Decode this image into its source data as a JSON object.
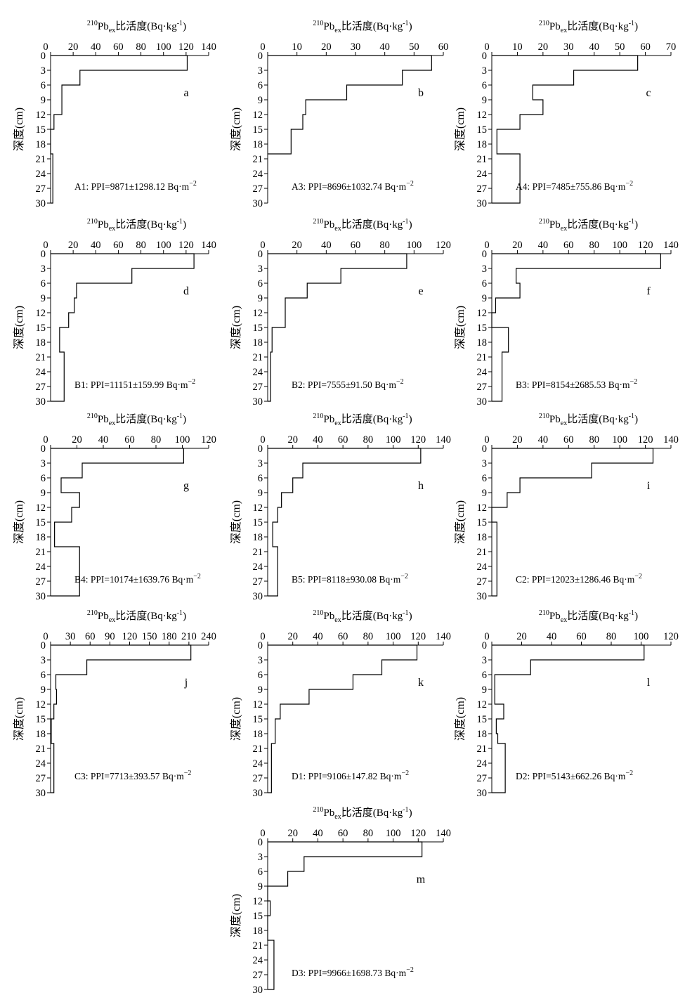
{
  "figure": {
    "axis_title": {
      "sup": "210",
      "base": "Pb",
      "sub": "ex",
      "text": "比活度(Bq·kg",
      "exp": "-1",
      "close": ")"
    },
    "ylabel": "深度(cm)",
    "depth_ticks": [
      0,
      3,
      6,
      9,
      12,
      15,
      18,
      21,
      24,
      27,
      30
    ],
    "ppi_unit": "Bq·m",
    "ppi_exp": "−2"
  },
  "chart_data": [
    {
      "type": "line",
      "step": true,
      "panel": "a",
      "site": "A1",
      "ppi": "PPI=9871±1298.12",
      "xlim": [
        0,
        140
      ],
      "xticks": [
        20,
        40,
        60,
        80,
        100,
        120,
        140
      ],
      "xtick_labels": [
        "20",
        "40",
        "60",
        "80",
        "100",
        "120",
        "140"
      ],
      "ylim": [
        0,
        30
      ],
      "profile": [
        [
          121,
          0,
          3
        ],
        [
          26,
          3,
          6
        ],
        [
          10,
          6,
          12
        ],
        [
          3,
          12,
          15
        ],
        [
          0,
          15,
          20
        ],
        [
          2,
          20,
          30
        ]
      ]
    },
    {
      "type": "line",
      "step": true,
      "panel": "b",
      "site": "A3",
      "ppi": "PPI=8696±1032.74",
      "xlim": [
        0,
        60
      ],
      "xticks": [
        10,
        20,
        30,
        40,
        50,
        60
      ],
      "xtick_labels": [
        "10",
        "20",
        "30",
        "40",
        "50",
        "60"
      ],
      "ylim": [
        0,
        30
      ],
      "profile": [
        [
          56,
          0,
          3
        ],
        [
          46,
          3,
          6
        ],
        [
          27,
          6,
          9
        ],
        [
          13,
          9,
          12
        ],
        [
          12,
          12,
          15
        ],
        [
          8,
          15,
          20
        ]
      ]
    },
    {
      "type": "line",
      "step": true,
      "panel": "c",
      "site": "A4",
      "ppi": "PPI=7485±755.86",
      "xlim": [
        0,
        70
      ],
      "xticks": [
        10,
        20,
        30,
        40,
        50,
        60,
        70
      ],
      "xtick_labels": [
        "10",
        "20",
        "30",
        "40",
        "50",
        "60",
        "70"
      ],
      "ylim": [
        0,
        30
      ],
      "profile": [
        [
          57,
          0,
          3
        ],
        [
          32,
          3,
          6
        ],
        [
          16,
          6,
          9
        ],
        [
          20,
          9,
          12
        ],
        [
          11,
          12,
          15
        ],
        [
          2,
          15,
          20
        ],
        [
          11,
          20,
          30
        ]
      ]
    },
    {
      "type": "line",
      "step": true,
      "panel": "d",
      "site": "B1",
      "ppi": "PPI=11151±159.99",
      "xlim": [
        0,
        140
      ],
      "xticks": [
        20,
        40,
        60,
        80,
        100,
        120,
        140
      ],
      "xtick_labels": [
        "20",
        "40",
        "60",
        "80",
        "100",
        "120",
        "140"
      ],
      "ylim": [
        0,
        30
      ],
      "profile": [
        [
          127,
          0,
          3
        ],
        [
          72,
          3,
          6
        ],
        [
          23,
          6,
          9
        ],
        [
          21,
          9,
          12
        ],
        [
          16,
          12,
          15
        ],
        [
          8,
          15,
          20
        ],
        [
          12,
          20,
          30
        ]
      ]
    },
    {
      "type": "line",
      "step": true,
      "panel": "e",
      "site": "B2",
      "ppi": "PPI=7555±91.50",
      "xlim": [
        0,
        120
      ],
      "xticks": [
        20,
        40,
        60,
        80,
        100,
        120
      ],
      "xtick_labels": [
        "20",
        "40",
        "60",
        "80",
        "100",
        "120"
      ],
      "ylim": [
        0,
        30
      ],
      "profile": [
        [
          95,
          0,
          3
        ],
        [
          50,
          3,
          6
        ],
        [
          27,
          6,
          9
        ],
        [
          12,
          9,
          15
        ],
        [
          3,
          15,
          20
        ],
        [
          2,
          20,
          30
        ]
      ]
    },
    {
      "type": "line",
      "step": true,
      "panel": "f",
      "site": "B3",
      "ppi": "PPI=8154±2685.53",
      "xlim": [
        0,
        140
      ],
      "xticks": [
        20,
        40,
        60,
        80,
        100,
        120,
        140
      ],
      "xtick_labels": [
        "20",
        "40",
        "60",
        "80",
        "100",
        "120",
        "140"
      ],
      "ylim": [
        0,
        30
      ],
      "profile": [
        [
          132,
          0,
          3
        ],
        [
          19,
          3,
          6
        ],
        [
          22,
          6,
          9
        ],
        [
          3,
          9,
          12
        ],
        [
          0,
          12,
          15
        ],
        [
          13,
          15,
          20
        ],
        [
          8,
          20,
          30
        ]
      ]
    },
    {
      "type": "line",
      "step": true,
      "panel": "g",
      "site": "B4",
      "ppi": "PPI=10174±1639.76",
      "xlim": [
        0,
        120
      ],
      "xticks": [
        20,
        40,
        60,
        80,
        100,
        120
      ],
      "xtick_labels": [
        "20",
        "40",
        "60",
        "80",
        "100",
        "120"
      ],
      "ylim": [
        0,
        30
      ],
      "profile": [
        [
          101,
          0,
          3
        ],
        [
          24,
          3,
          6
        ],
        [
          8,
          6,
          9
        ],
        [
          22,
          9,
          12
        ],
        [
          16,
          12,
          15
        ],
        [
          3,
          15,
          20
        ],
        [
          22,
          20,
          30
        ]
      ]
    },
    {
      "type": "line",
      "step": true,
      "panel": "h",
      "site": "B5",
      "ppi": "PPI=8118±930.08",
      "xlim": [
        0,
        140
      ],
      "xticks": [
        20,
        40,
        60,
        80,
        100,
        120,
        140
      ],
      "xtick_labels": [
        "20",
        "40",
        "60",
        "80",
        "100",
        "120",
        "140"
      ],
      "ylim": [
        0,
        30
      ],
      "profile": [
        [
          122,
          0,
          3
        ],
        [
          28,
          3,
          6
        ],
        [
          20,
          6,
          9
        ],
        [
          11,
          9,
          12
        ],
        [
          8,
          12,
          15
        ],
        [
          4,
          15,
          20
        ],
        [
          8,
          20,
          30
        ]
      ]
    },
    {
      "type": "line",
      "step": true,
      "panel": "i",
      "site": "C2",
      "ppi": "PPI=12023±1286.46",
      "xlim": [
        0,
        140
      ],
      "xticks": [
        20,
        40,
        60,
        80,
        100,
        120,
        140
      ],
      "xtick_labels": [
        "20",
        "40",
        "60",
        "80",
        "100",
        "120",
        "140"
      ],
      "ylim": [
        0,
        30
      ],
      "profile": [
        [
          126,
          0,
          3
        ],
        [
          78,
          3,
          6
        ],
        [
          22,
          6,
          9
        ],
        [
          12,
          9,
          12
        ],
        [
          0,
          12,
          15
        ],
        [
          4,
          15,
          30
        ]
      ]
    },
    {
      "type": "line",
      "step": true,
      "panel": "j",
      "site": "C3",
      "ppi": "PPI=7713±393.57",
      "xlim": [
        0,
        240
      ],
      "xticks": [
        30,
        60,
        90,
        120,
        150,
        180,
        210,
        240
      ],
      "xtick_labels": [
        "30",
        "60",
        "90",
        "120",
        "150",
        "180",
        "210",
        "240"
      ],
      "ylim": [
        0,
        30
      ],
      "profile": [
        [
          213,
          0,
          3
        ],
        [
          55,
          3,
          6
        ],
        [
          8,
          6,
          9
        ],
        [
          9,
          9,
          12
        ],
        [
          5,
          12,
          15
        ],
        [
          1,
          15,
          20
        ],
        [
          5,
          20,
          30
        ]
      ]
    },
    {
      "type": "line",
      "step": true,
      "panel": "k",
      "site": "D1",
      "ppi": "PPI=9106±147.82",
      "xlim": [
        0,
        140
      ],
      "xticks": [
        20,
        40,
        60,
        80,
        100,
        120,
        140
      ],
      "xtick_labels": [
        "20",
        "40",
        "60",
        "80",
        "100",
        "120",
        "140"
      ],
      "ylim": [
        0,
        30
      ],
      "profile": [
        [
          119,
          0,
          3
        ],
        [
          91,
          3,
          6
        ],
        [
          68,
          6,
          9
        ],
        [
          33,
          9,
          12
        ],
        [
          10,
          12,
          15
        ],
        [
          6,
          15,
          20
        ],
        [
          3,
          20,
          30
        ]
      ]
    },
    {
      "type": "line",
      "step": true,
      "panel": "l",
      "site": "D2",
      "ppi": "PPI=5143±662.26",
      "xlim": [
        0,
        120
      ],
      "xticks": [
        20,
        40,
        60,
        80,
        100,
        120
      ],
      "xtick_labels": [
        "20",
        "40",
        "60",
        "80",
        "100",
        "120"
      ],
      "ylim": [
        0,
        30
      ],
      "profile": [
        [
          102,
          0,
          3
        ],
        [
          26,
          3,
          6
        ],
        [
          2,
          6,
          12
        ],
        [
          8,
          12,
          15
        ],
        [
          3,
          15,
          18
        ],
        [
          4,
          18,
          20
        ],
        [
          9,
          20,
          30
        ]
      ]
    },
    {
      "type": "line",
      "step": true,
      "panel": "m",
      "site": "D3",
      "ppi": "PPI=9966±1698.73",
      "xlim": [
        0,
        140
      ],
      "xticks": [
        20,
        40,
        60,
        80,
        100,
        120,
        140
      ],
      "xtick_labels": [
        "20",
        "40",
        "60",
        "80",
        "100",
        "120",
        "140"
      ],
      "ylim": [
        0,
        30
      ],
      "profile": [
        [
          123,
          0,
          3
        ],
        [
          29,
          3,
          6
        ],
        [
          16,
          6,
          9
        ],
        [
          0,
          9,
          12
        ],
        [
          2,
          12,
          15
        ],
        [
          0,
          15,
          20
        ],
        [
          5,
          20,
          30
        ]
      ]
    }
  ]
}
